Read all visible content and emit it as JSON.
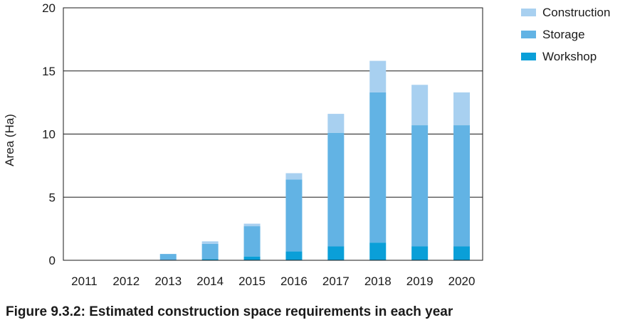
{
  "caption": "Figure 9.3.2: Estimated construction space requirements in each year",
  "chart_data": {
    "type": "bar",
    "stacked": true,
    "categories": [
      "2011",
      "2012",
      "2013",
      "2014",
      "2015",
      "2016",
      "2017",
      "2018",
      "2019",
      "2020"
    ],
    "series": [
      {
        "name": "Workshop",
        "color": "#0a9fd8",
        "values": [
          0,
          0,
          0,
          0.1,
          0.3,
          0.7,
          1.1,
          1.4,
          1.1,
          1.1
        ]
      },
      {
        "name": "Storage",
        "color": "#62b3e4",
        "values": [
          0,
          0,
          0.5,
          1.2,
          2.4,
          5.7,
          9.0,
          11.9,
          9.6,
          9.6
        ]
      },
      {
        "name": "Construction",
        "color": "#a8d0f0",
        "values": [
          0,
          0,
          0,
          0.2,
          0.2,
          0.5,
          1.5,
          2.5,
          3.2,
          2.6
        ]
      }
    ],
    "legend": [
      "Construction",
      "Storage",
      "Workshop"
    ],
    "legend_position": "top-right",
    "title": "",
    "xlabel": "",
    "ylabel": "Area (Ha)",
    "ylim": [
      0,
      20
    ],
    "yticks": [
      "0",
      "5",
      "10",
      "15",
      "20"
    ],
    "grid": true
  }
}
